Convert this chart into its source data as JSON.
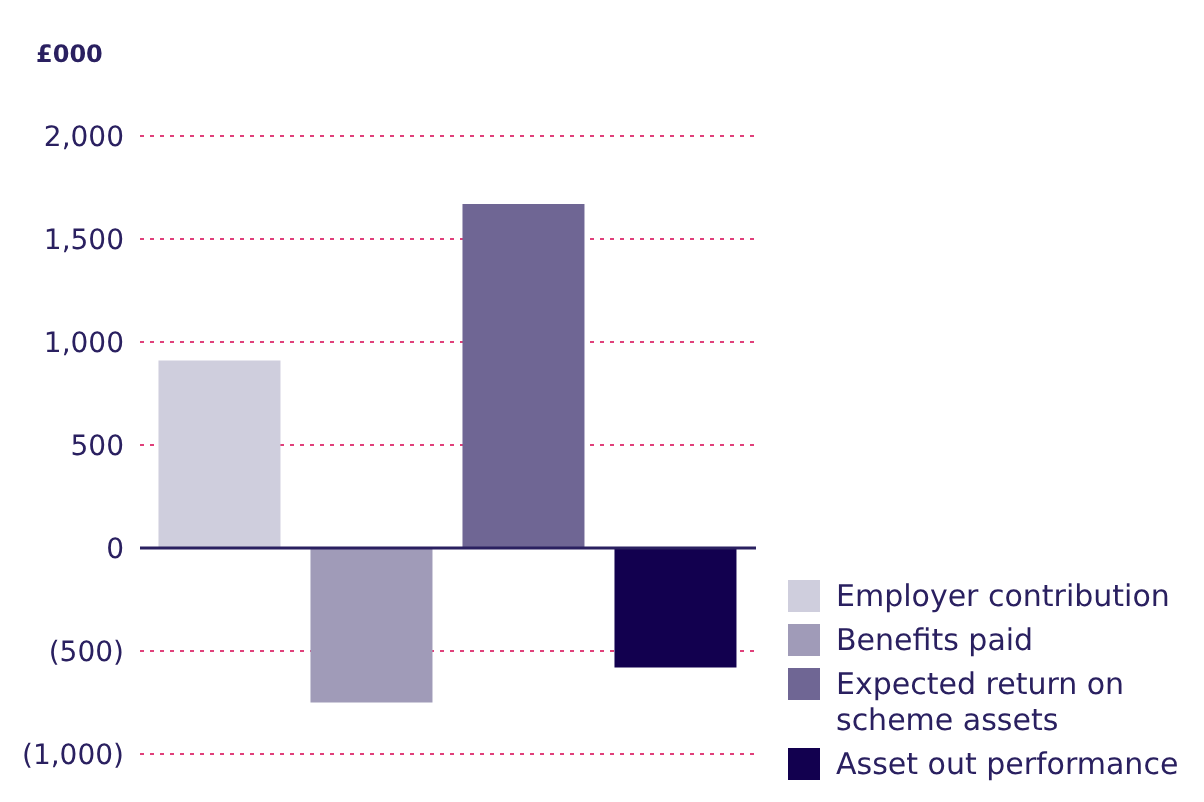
{
  "chart_data": {
    "type": "bar",
    "ylabel": "£000",
    "categories": [
      null
    ],
    "series": [
      {
        "name": "Employer contribution",
        "color": "#cfcedd",
        "values": [
          910
        ]
      },
      {
        "name": "Benefits paid",
        "color": "#a09bb8",
        "values": [
          -750
        ]
      },
      {
        "name": "Expected return on scheme assets",
        "color": "#6f6694",
        "values": [
          1670
        ]
      },
      {
        "name": "Asset out performance",
        "color": "#12004f",
        "values": [
          -580
        ]
      }
    ],
    "ylim": [
      -1000,
      2000
    ],
    "yticks": [
      {
        "value": -1000,
        "label": "(1,000)"
      },
      {
        "value": -500,
        "label": "(500)"
      },
      0,
      500,
      {
        "value": 1000,
        "label": "1,000"
      },
      {
        "value": 1500,
        "label": "1,500"
      },
      {
        "value": 2000,
        "label": "2,000"
      }
    ],
    "grid": "y",
    "legend": "bottom right"
  }
}
